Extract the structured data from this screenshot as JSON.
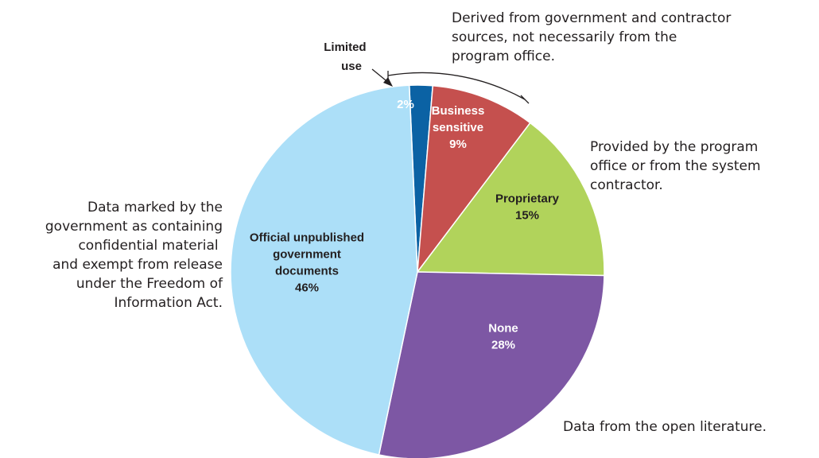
{
  "chart_data": {
    "type": "pie",
    "slices": [
      {
        "label_lines": [
          "",
          "2%"
        ],
        "value": 2,
        "color": "#0b62a4",
        "text_color": "#ffffff"
      },
      {
        "label_lines": [
          "Business",
          "sensitive",
          "9%"
        ],
        "value": 9,
        "color": "#c5504e",
        "text_color": "#ffffff"
      },
      {
        "label_lines": [
          "Proprietary",
          "15%"
        ],
        "value": 15,
        "color": "#b1d35b",
        "text_color": "#231f20"
      },
      {
        "label_lines": [
          "None",
          "28%"
        ],
        "value": 28,
        "color": "#7d57a4",
        "text_color": "#ffffff"
      },
      {
        "label_lines": [
          "Official unpublished",
          "government",
          "documents",
          "46%"
        ],
        "value": 46,
        "color": "#acdff8",
        "text_color": "#231f20"
      }
    ],
    "callout": {
      "lines": [
        "Limited",
        "use"
      ]
    },
    "annotations": [
      {
        "id": "derived",
        "lines": [
          "Derived from government and contractor",
          "sources, not necessarily from the",
          "program office."
        ]
      },
      {
        "id": "provided",
        "lines": [
          "Provided by the program",
          "office or from the system",
          "contractor."
        ]
      },
      {
        "id": "gov-marked",
        "lines": [
          "Data marked by the",
          "government as containing",
          "confidential material ",
          "and exempt from release",
          "under the Freedom of",
          "Information Act."
        ]
      },
      {
        "id": "open-lit",
        "lines": [
          "Data from the open literature."
        ]
      }
    ]
  }
}
